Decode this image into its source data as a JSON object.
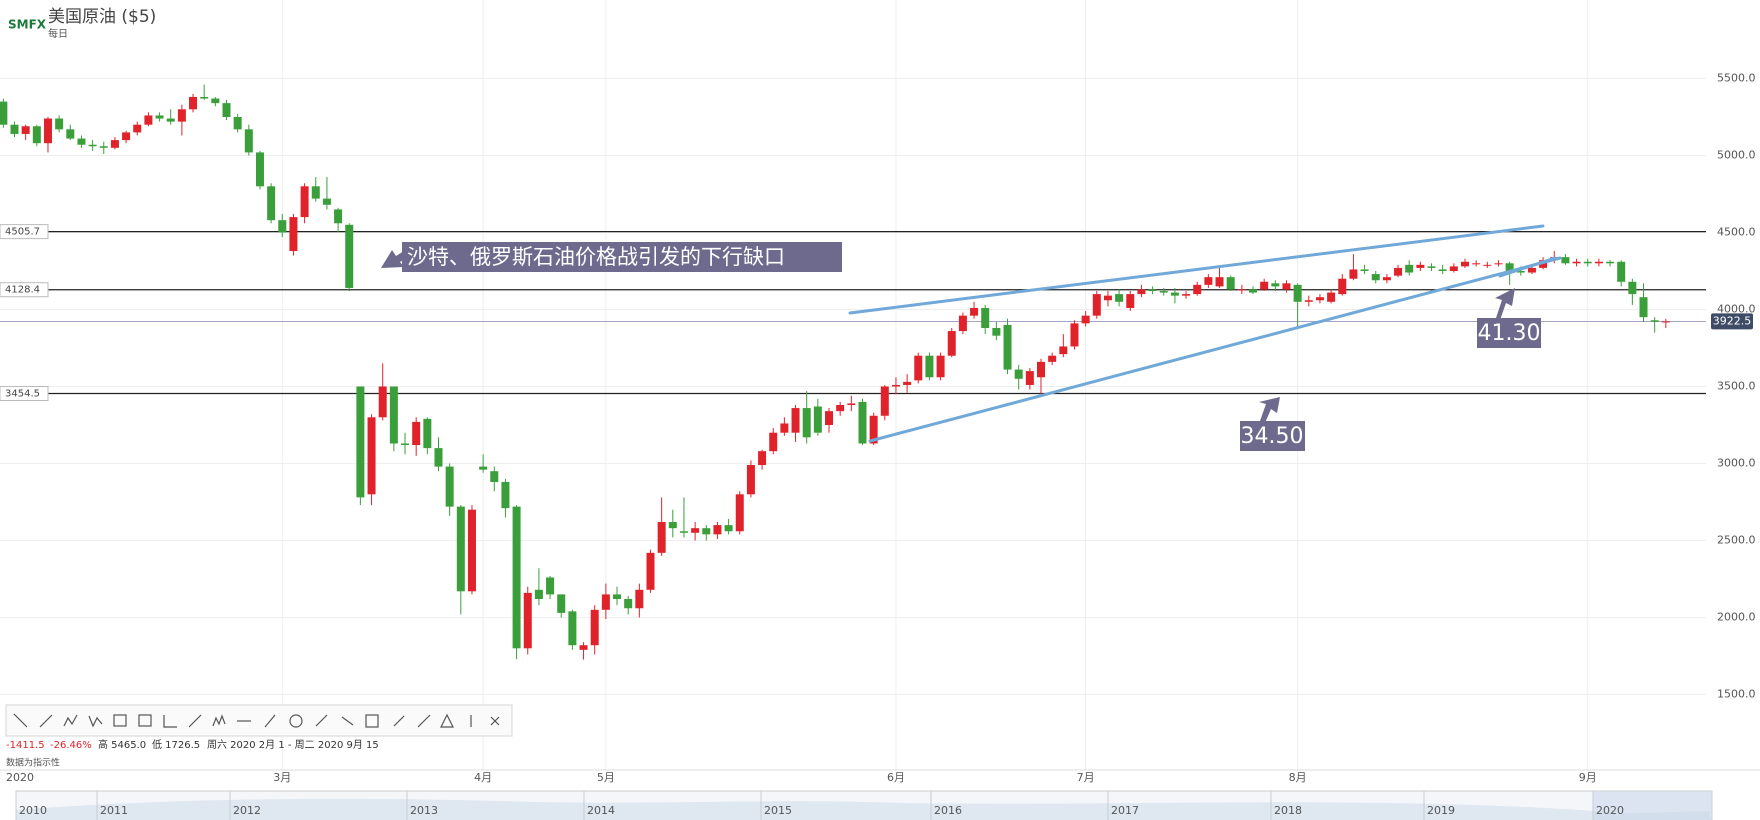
{
  "header": {
    "logo": "SMFX",
    "title": "美国原油 ($5)",
    "interval": "每日"
  },
  "chart_data": {
    "type": "candlestick",
    "ylim": [
      1300,
      5650
    ],
    "xlim": [
      -0.3,
      152.6
    ],
    "yticks": [
      {
        "value": 1500,
        "label": "1500.0"
      },
      {
        "value": 2000,
        "label": "2000.0"
      },
      {
        "value": 2500,
        "label": "2500.0"
      },
      {
        "value": 3000,
        "label": "3000.0"
      },
      {
        "value": 3500,
        "label": "3500.0"
      },
      {
        "value": 4000,
        "label": "4000.0"
      },
      {
        "value": 4500,
        "label": "4500.0"
      },
      {
        "value": 5000,
        "label": "5000.0"
      },
      {
        "value": 5500,
        "label": "5500.0"
      }
    ],
    "xticks": [
      {
        "value": 25,
        "label": "3月"
      },
      {
        "value": 43,
        "label": "4月"
      },
      {
        "value": 54,
        "label": "5月"
      },
      {
        "value": 80,
        "label": "6月"
      },
      {
        "value": 97,
        "label": "7月"
      },
      {
        "value": 116,
        "label": "8月"
      },
      {
        "value": 142,
        "label": "9月"
      }
    ],
    "year_label": "2020",
    "up_color": "#e0232a",
    "down_color": "#3a9f3a",
    "grid": true,
    "levels": [
      4505.7,
      4128.4,
      3454.5
    ],
    "last_price": 3922.5,
    "annotations": [
      "沙特、俄罗斯石油价格战引发的下行缺口",
      "41.30",
      "34.50"
    ],
    "ohlc": [
      [
        5350,
        5370,
        5180,
        5200
      ],
      [
        5200,
        5220,
        5120,
        5140
      ],
      [
        5140,
        5200,
        5100,
        5190
      ],
      [
        5190,
        5200,
        5060,
        5080
      ],
      [
        5080,
        5250,
        5020,
        5240
      ],
      [
        5240,
        5260,
        5150,
        5170
      ],
      [
        5170,
        5200,
        5100,
        5110
      ],
      [
        5110,
        5130,
        5050,
        5070
      ],
      [
        5070,
        5100,
        5030,
        5060
      ],
      [
        5060,
        5090,
        5010,
        5050
      ],
      [
        5050,
        5120,
        5040,
        5100
      ],
      [
        5100,
        5160,
        5080,
        5150
      ],
      [
        5150,
        5220,
        5130,
        5200
      ],
      [
        5200,
        5280,
        5190,
        5260
      ],
      [
        5260,
        5280,
        5220,
        5240
      ],
      [
        5240,
        5300,
        5200,
        5220
      ],
      [
        5220,
        5330,
        5130,
        5300
      ],
      [
        5300,
        5400,
        5280,
        5380
      ],
      [
        5380,
        5460,
        5360,
        5370
      ],
      [
        5370,
        5380,
        5320,
        5340
      ],
      [
        5340,
        5360,
        5230,
        5250
      ],
      [
        5250,
        5270,
        5150,
        5170
      ],
      [
        5170,
        5200,
        5000,
        5020
      ],
      [
        5020,
        5030,
        4780,
        4800
      ],
      [
        4800,
        4820,
        4560,
        4580
      ],
      [
        4580,
        4620,
        4470,
        4500
      ],
      [
        4380,
        4620,
        4350,
        4600
      ],
      [
        4600,
        4820,
        4560,
        4800
      ],
      [
        4800,
        4860,
        4700,
        4720
      ],
      [
        4720,
        4860,
        4650,
        4680
      ],
      [
        4650,
        4660,
        4500,
        4560
      ],
      [
        4550,
        4560,
        4120,
        4140
      ],
      [
        3500,
        3500,
        2730,
        2780
      ],
      [
        2800,
        3320,
        2730,
        3300
      ],
      [
        3300,
        3650,
        3280,
        3500
      ],
      [
        3500,
        3500,
        3080,
        3130
      ],
      [
        3130,
        3200,
        3060,
        3120
      ],
      [
        3120,
        3300,
        3050,
        3270
      ],
      [
        3290,
        3300,
        3060,
        3100
      ],
      [
        3100,
        3170,
        2950,
        2980
      ],
      [
        2980,
        3000,
        2660,
        2720
      ],
      [
        2720,
        2730,
        2020,
        2170
      ],
      [
        2170,
        2730,
        2150,
        2700
      ],
      [
        2980,
        3060,
        2940,
        2960
      ],
      [
        2950,
        2980,
        2820,
        2880
      ],
      [
        2880,
        2900,
        2650,
        2710
      ],
      [
        2720,
        2730,
        1730,
        1800
      ],
      [
        1800,
        2200,
        1760,
        2160
      ],
      [
        2180,
        2320,
        2080,
        2120
      ],
      [
        2260,
        2270,
        2120,
        2150
      ],
      [
        2150,
        2150,
        2000,
        2030
      ],
      [
        2040,
        2050,
        1790,
        1820
      ],
      [
        1790,
        1840,
        1726.5,
        1820
      ],
      [
        1820,
        2080,
        1760,
        2050
      ],
      [
        2050,
        2220,
        1990,
        2150
      ],
      [
        2150,
        2200,
        2080,
        2120
      ],
      [
        2120,
        2140,
        2020,
        2060
      ],
      [
        2060,
        2220,
        2000,
        2180
      ],
      [
        2180,
        2440,
        2160,
        2420
      ],
      [
        2420,
        2780,
        2400,
        2620
      ],
      [
        2620,
        2700,
        2520,
        2580
      ],
      [
        2560,
        2780,
        2520,
        2550
      ],
      [
        2550,
        2620,
        2500,
        2580
      ],
      [
        2580,
        2600,
        2500,
        2540
      ],
      [
        2540,
        2620,
        2510,
        2600
      ],
      [
        2600,
        2640,
        2540,
        2560
      ],
      [
        2560,
        2820,
        2540,
        2800
      ],
      [
        2800,
        3020,
        2780,
        2990
      ],
      [
        2990,
        3090,
        2960,
        3080
      ],
      [
        3080,
        3230,
        3060,
        3200
      ],
      [
        3200,
        3300,
        3180,
        3260
      ],
      [
        3200,
        3380,
        3140,
        3360
      ],
      [
        3360,
        3470,
        3130,
        3170
      ],
      [
        3370,
        3420,
        3180,
        3200
      ],
      [
        3250,
        3360,
        3200,
        3340
      ],
      [
        3340,
        3400,
        3310,
        3380
      ],
      [
        3380,
        3440,
        3340,
        3390
      ],
      [
        3400,
        3420,
        3120,
        3130
      ],
      [
        3130,
        3330,
        3120,
        3310
      ],
      [
        3310,
        3510,
        3280,
        3500
      ],
      [
        3500,
        3560,
        3450,
        3510
      ],
      [
        3510,
        3580,
        3460,
        3530
      ],
      [
        3540,
        3720,
        3520,
        3700
      ],
      [
        3700,
        3720,
        3540,
        3560
      ],
      [
        3560,
        3720,
        3540,
        3700
      ],
      [
        3700,
        3880,
        3690,
        3860
      ],
      [
        3860,
        3980,
        3840,
        3960
      ],
      [
        3960,
        4050,
        3940,
        4010
      ],
      [
        4010,
        4030,
        3840,
        3880
      ],
      [
        3880,
        3920,
        3800,
        3830
      ],
      [
        3900,
        3940,
        3580,
        3610
      ],
      [
        3610,
        3640,
        3480,
        3550
      ],
      [
        3510,
        3620,
        3480,
        3600
      ],
      [
        3560,
        3680,
        3450,
        3660
      ],
      [
        3660,
        3720,
        3640,
        3700
      ],
      [
        3710,
        3840,
        3690,
        3760
      ],
      [
        3760,
        3930,
        3740,
        3910
      ],
      [
        3910,
        3990,
        3890,
        3960
      ],
      [
        3960,
        4120,
        3940,
        4100
      ],
      [
        4060,
        4120,
        4020,
        4090
      ],
      [
        4100,
        4130,
        4020,
        4050
      ],
      [
        4010,
        4120,
        3990,
        4100
      ],
      [
        4100,
        4160,
        4080,
        4130
      ],
      [
        4130,
        4150,
        4100,
        4120
      ],
      [
        4120,
        4140,
        4090,
        4110
      ],
      [
        4110,
        4140,
        4040,
        4090
      ],
      [
        4090,
        4120,
        4070,
        4100
      ],
      [
        4100,
        4180,
        4090,
        4160
      ],
      [
        4160,
        4230,
        4140,
        4210
      ],
      [
        4150,
        4270,
        4140,
        4210
      ],
      [
        4210,
        4220,
        4120,
        4130
      ],
      [
        4130,
        4160,
        4100,
        4130
      ],
      [
        4130,
        4150,
        4100,
        4110
      ],
      [
        4130,
        4200,
        4120,
        4180
      ],
      [
        4170,
        4190,
        4120,
        4150
      ],
      [
        4130,
        4190,
        4110,
        4170
      ],
      [
        4160,
        4170,
        3880,
        4050
      ],
      [
        4050,
        4090,
        4020,
        4060
      ],
      [
        4060,
        4100,
        4040,
        4080
      ],
      [
        4050,
        4130,
        4040,
        4110
      ],
      [
        4100,
        4230,
        4090,
        4200
      ],
      [
        4200,
        4360,
        4190,
        4260
      ],
      [
        4260,
        4290,
        4230,
        4250
      ],
      [
        4230,
        4250,
        4170,
        4190
      ],
      [
        4190,
        4230,
        4170,
        4210
      ],
      [
        4220,
        4290,
        4210,
        4270
      ],
      [
        4290,
        4320,
        4220,
        4240
      ],
      [
        4270,
        4310,
        4250,
        4290
      ],
      [
        4280,
        4300,
        4250,
        4270
      ],
      [
        4260,
        4290,
        4230,
        4250
      ],
      [
        4250,
        4300,
        4240,
        4280
      ],
      [
        4280,
        4330,
        4270,
        4310
      ],
      [
        4300,
        4320,
        4280,
        4300
      ],
      [
        4290,
        4310,
        4270,
        4290
      ],
      [
        4300,
        4320,
        4280,
        4300
      ],
      [
        4300,
        4310,
        4160,
        4250
      ],
      [
        4250,
        4280,
        4220,
        4240
      ],
      [
        4240,
        4290,
        4230,
        4270
      ],
      [
        4270,
        4340,
        4260,
        4320
      ],
      [
        4320,
        4380,
        4300,
        4340
      ],
      [
        4340,
        4360,
        4290,
        4300
      ],
      [
        4300,
        4330,
        4280,
        4310
      ],
      [
        4310,
        4330,
        4280,
        4300
      ],
      [
        4300,
        4330,
        4280,
        4310
      ],
      [
        4310,
        4320,
        4280,
        4300
      ],
      [
        4310,
        4320,
        4150,
        4180
      ],
      [
        4180,
        4200,
        4030,
        4100
      ],
      [
        4080,
        4170,
        3920,
        3950
      ],
      [
        3930,
        3950,
        3850,
        3920
      ],
      [
        3920,
        3940,
        3880,
        3922.5
      ]
    ]
  },
  "stats": {
    "change": "-1411.5",
    "change_pct": "-26.46%",
    "high": "高 5465.0",
    "low": "低 1726.5",
    "range": "周六 2020 2月 1 - 周二 2020 9月 15",
    "note": "数据为指示性"
  },
  "navigator": [
    "2010",
    "2011",
    "2012",
    "2013",
    "2014",
    "2015",
    "2016",
    "2017",
    "2018",
    "2019",
    "2020"
  ]
}
